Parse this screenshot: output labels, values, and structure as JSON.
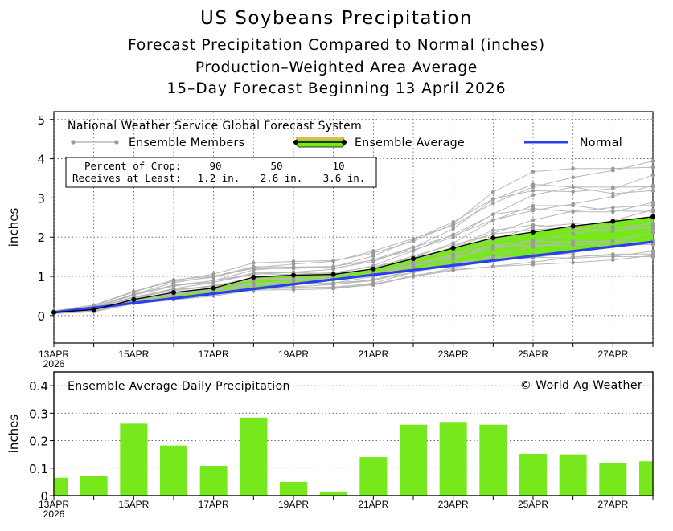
{
  "titles": {
    "main": "US Soybeans Precipitation",
    "sub1": "Forecast Precipitation Compared to Normal (inches)",
    "sub2": "Production–Weighted Area Average",
    "sub3": "15–Day Forecast Beginning 13 April 2026"
  },
  "colors": {
    "normal": "#2a3ff0",
    "ensemble_fill": "#77e81c",
    "members": "#b8b8b8",
    "member_points": "#9a9a9a",
    "average_highlight": "#f4b24a",
    "bars": "#77e81c"
  },
  "chart_data": [
    {
      "type": "line",
      "ylabel": "inches",
      "ylim": [
        -0.7,
        5.2
      ],
      "yticks": [
        0,
        1,
        2,
        3,
        4,
        5
      ],
      "x": [
        "13APR",
        "14APR",
        "15APR",
        "16APR",
        "17APR",
        "18APR",
        "19APR",
        "20APR",
        "21APR",
        "22APR",
        "23APR",
        "24APR",
        "25APR",
        "26APR",
        "27APR",
        "28APR"
      ],
      "xtick_labels": [
        {
          "label": "13APR",
          "sub": "2026"
        },
        {
          "label": "15APR",
          "sub": ""
        },
        {
          "label": "17APR",
          "sub": ""
        },
        {
          "label": "19APR",
          "sub": ""
        },
        {
          "label": "21APR",
          "sub": ""
        },
        {
          "label": "23APR",
          "sub": ""
        },
        {
          "label": "25APR",
          "sub": ""
        },
        {
          "label": "27APR",
          "sub": ""
        }
      ],
      "grid": true,
      "legend": {
        "heading": "National Weather Service Global Forecast System",
        "members": "Ensemble Members",
        "average": "Ensemble Average",
        "normal": "Normal"
      },
      "percent_table": {
        "row1_label": "Percent of Crop:",
        "row2_label": "Receives at Least:",
        "percents": [
          "90",
          "50",
          "10"
        ],
        "amounts": [
          "1.2 in.",
          "2.6 in.",
          "3.6 in."
        ]
      },
      "series": [
        {
          "name": "Ensemble Average",
          "values": [
            0.08,
            0.15,
            0.41,
            0.59,
            0.7,
            0.98,
            1.03,
            1.05,
            1.19,
            1.45,
            1.72,
            1.98,
            2.13,
            2.28,
            2.4,
            2.52
          ]
        },
        {
          "name": "Normal",
          "values": [
            0.08,
            0.2,
            0.32,
            0.44,
            0.56,
            0.68,
            0.8,
            0.92,
            1.04,
            1.16,
            1.28,
            1.4,
            1.52,
            1.64,
            1.76,
            1.88
          ]
        }
      ],
      "member_band": {
        "low": [
          0.05,
          0.09,
          0.3,
          0.4,
          0.5,
          0.65,
          0.66,
          0.68,
          0.76,
          0.98,
          1.15,
          1.25,
          1.3,
          1.35,
          1.4,
          1.45
        ],
        "high": [
          0.12,
          0.27,
          0.64,
          0.95,
          1.08,
          1.34,
          1.38,
          1.4,
          1.65,
          2.02,
          2.48,
          3.23,
          3.67,
          3.75,
          3.75,
          3.95
        ]
      }
    },
    {
      "type": "bar",
      "title": "Ensemble Average Daily Precipitation",
      "credit": "© World Ag Weather",
      "ylabel": "inches",
      "ylim": [
        0,
        0.45
      ],
      "yticks": [
        "0",
        "0.1",
        "0.2",
        "0.3",
        "0.4"
      ],
      "categories": [
        "13APR",
        "14APR",
        "15APR",
        "16APR",
        "17APR",
        "18APR",
        "19APR",
        "20APR",
        "21APR",
        "22APR",
        "23APR",
        "24APR",
        "25APR",
        "26APR",
        "27APR",
        "28APR"
      ],
      "values": [
        0.065,
        0.072,
        0.262,
        0.182,
        0.108,
        0.284,
        0.05,
        0.015,
        0.14,
        0.258,
        0.268,
        0.258,
        0.152,
        0.15,
        0.12,
        0.125
      ]
    }
  ]
}
